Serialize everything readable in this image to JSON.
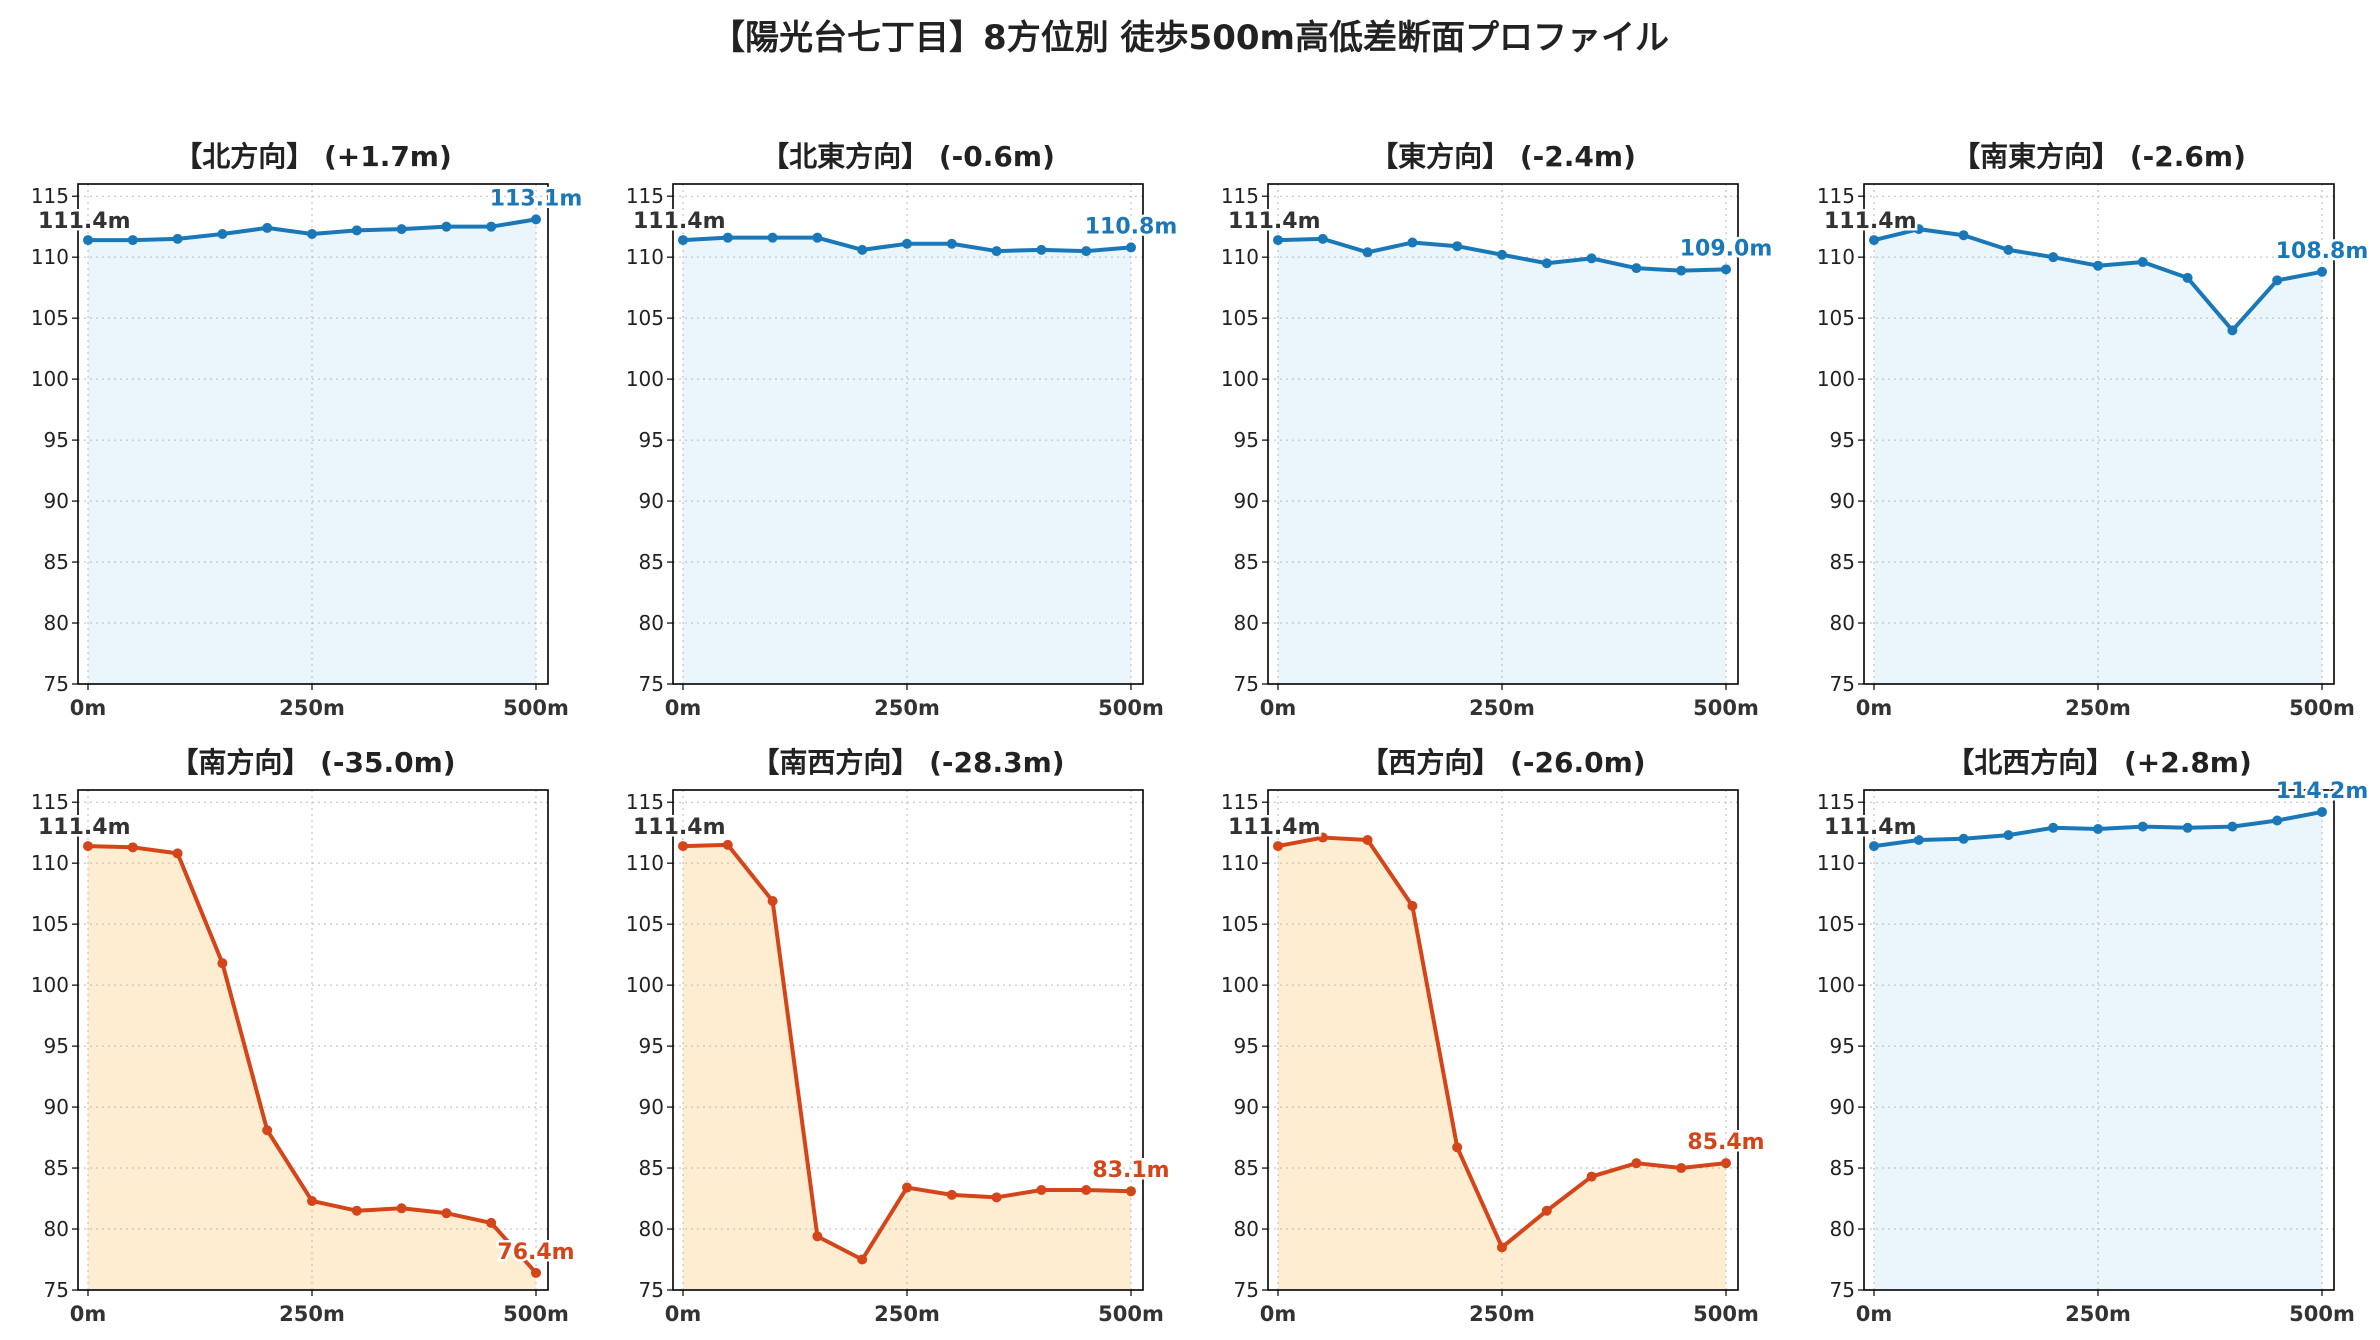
{
  "title": "【陽光台七丁目】8方位別 徒歩500m高低差断面プロファイル",
  "colors": {
    "up_line": "#1a78b8",
    "up_fill": "#eaf6fc",
    "down_line": "#d4451a",
    "down_fill": "#ffedd2",
    "start_label": "#333333"
  },
  "chart_data": [
    {
      "type": "line",
      "title": "【北方向】 (+1.7m)",
      "trend": "up",
      "xticks": [
        "0m",
        "250m",
        "500m"
      ],
      "yticks": [
        "75",
        "80",
        "85",
        "90",
        "95",
        "100",
        "105",
        "110",
        "115"
      ],
      "ylim": [
        75,
        116
      ],
      "xlim": [
        0,
        500
      ],
      "grid": true,
      "start_label": "111.4m",
      "end_label": "113.1m",
      "x": [
        0,
        50,
        100,
        150,
        200,
        250,
        300,
        350,
        400,
        450,
        500
      ],
      "y": [
        111.4,
        111.4,
        111.5,
        111.9,
        112.4,
        111.9,
        112.2,
        112.3,
        112.5,
        112.5,
        113.1
      ]
    },
    {
      "type": "line",
      "title": "【北東方向】 (-0.6m)",
      "trend": "up",
      "xticks": [
        "0m",
        "250m",
        "500m"
      ],
      "yticks": [
        "75",
        "80",
        "85",
        "90",
        "95",
        "100",
        "105",
        "110",
        "115"
      ],
      "ylim": [
        75,
        116
      ],
      "xlim": [
        0,
        500
      ],
      "grid": true,
      "start_label": "111.4m",
      "end_label": "110.8m",
      "x": [
        0,
        50,
        100,
        150,
        200,
        250,
        300,
        350,
        400,
        450,
        500
      ],
      "y": [
        111.4,
        111.6,
        111.6,
        111.6,
        110.6,
        111.1,
        111.1,
        110.5,
        110.6,
        110.5,
        110.8
      ]
    },
    {
      "type": "line",
      "title": "【東方向】 (-2.4m)",
      "trend": "up",
      "xticks": [
        "0m",
        "250m",
        "500m"
      ],
      "yticks": [
        "75",
        "80",
        "85",
        "90",
        "95",
        "100",
        "105",
        "110",
        "115"
      ],
      "ylim": [
        75,
        116
      ],
      "xlim": [
        0,
        500
      ],
      "grid": true,
      "start_label": "111.4m",
      "end_label": "109.0m",
      "x": [
        0,
        50,
        100,
        150,
        200,
        250,
        300,
        350,
        400,
        450,
        500
      ],
      "y": [
        111.4,
        111.5,
        110.4,
        111.2,
        110.9,
        110.2,
        109.5,
        109.9,
        109.1,
        108.9,
        109.0
      ]
    },
    {
      "type": "line",
      "title": "【南東方向】 (-2.6m)",
      "trend": "up",
      "xticks": [
        "0m",
        "250m",
        "500m"
      ],
      "yticks": [
        "75",
        "80",
        "85",
        "90",
        "95",
        "100",
        "105",
        "110",
        "115"
      ],
      "ylim": [
        75,
        116
      ],
      "xlim": [
        0,
        500
      ],
      "grid": true,
      "start_label": "111.4m",
      "end_label": "108.8m",
      "x": [
        0,
        50,
        100,
        150,
        200,
        250,
        300,
        350,
        400,
        450,
        500
      ],
      "y": [
        111.4,
        112.3,
        111.8,
        110.6,
        110.0,
        109.3,
        109.6,
        108.3,
        104.0,
        108.1,
        108.8
      ]
    },
    {
      "type": "line",
      "title": "【南方向】 (-35.0m)",
      "trend": "down",
      "xticks": [
        "0m",
        "250m",
        "500m"
      ],
      "yticks": [
        "75",
        "80",
        "85",
        "90",
        "95",
        "100",
        "105",
        "110",
        "115"
      ],
      "ylim": [
        75,
        116
      ],
      "xlim": [
        0,
        500
      ],
      "grid": true,
      "start_label": "111.4m",
      "end_label": "76.4m",
      "x": [
        0,
        50,
        100,
        150,
        200,
        250,
        300,
        350,
        400,
        450,
        500
      ],
      "y": [
        111.4,
        111.3,
        110.8,
        101.8,
        88.1,
        82.3,
        81.5,
        81.7,
        81.3,
        80.5,
        76.4
      ]
    },
    {
      "type": "line",
      "title": "【南西方向】 (-28.3m)",
      "trend": "down",
      "xticks": [
        "0m",
        "250m",
        "500m"
      ],
      "yticks": [
        "75",
        "80",
        "85",
        "90",
        "95",
        "100",
        "105",
        "110",
        "115"
      ],
      "ylim": [
        75,
        116
      ],
      "xlim": [
        0,
        500
      ],
      "grid": true,
      "start_label": "111.4m",
      "end_label": "83.1m",
      "x": [
        0,
        50,
        100,
        150,
        200,
        250,
        300,
        350,
        400,
        450,
        500
      ],
      "y": [
        111.4,
        111.5,
        106.9,
        79.4,
        77.5,
        83.4,
        82.8,
        82.6,
        83.2,
        83.2,
        83.1
      ]
    },
    {
      "type": "line",
      "title": "【西方向】 (-26.0m)",
      "trend": "down",
      "xticks": [
        "0m",
        "250m",
        "500m"
      ],
      "yticks": [
        "75",
        "80",
        "85",
        "90",
        "95",
        "100",
        "105",
        "110",
        "115"
      ],
      "ylim": [
        75,
        116
      ],
      "xlim": [
        0,
        500
      ],
      "grid": true,
      "start_label": "111.4m",
      "end_label": "85.4m",
      "x": [
        0,
        50,
        100,
        150,
        200,
        250,
        300,
        350,
        400,
        450,
        500
      ],
      "y": [
        111.4,
        112.1,
        111.9,
        106.5,
        86.7,
        78.5,
        81.5,
        84.3,
        85.4,
        85.0,
        85.4
      ]
    },
    {
      "type": "line",
      "title": "【北西方向】 (+2.8m)",
      "trend": "up",
      "xticks": [
        "0m",
        "250m",
        "500m"
      ],
      "yticks": [
        "75",
        "80",
        "85",
        "90",
        "95",
        "100",
        "105",
        "110",
        "115"
      ],
      "ylim": [
        75,
        116
      ],
      "xlim": [
        0,
        500
      ],
      "grid": true,
      "start_label": "111.4m",
      "end_label": "114.2m",
      "x": [
        0,
        50,
        100,
        150,
        200,
        250,
        300,
        350,
        400,
        450,
        500
      ],
      "y": [
        111.4,
        111.9,
        112.0,
        112.3,
        112.9,
        112.8,
        113.0,
        112.9,
        113.0,
        113.5,
        114.2
      ]
    }
  ]
}
